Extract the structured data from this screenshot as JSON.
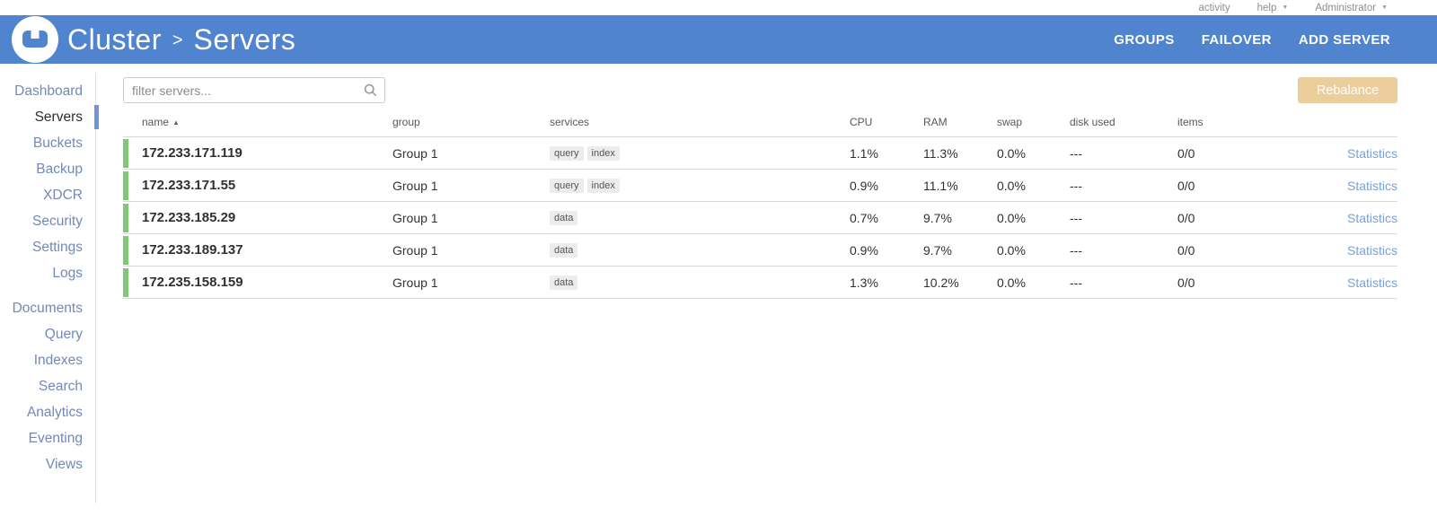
{
  "topbar": {
    "activity": "activity",
    "help": "help",
    "user": "Administrator"
  },
  "header": {
    "breadcrumb": {
      "root": "Cluster",
      "separator": ">",
      "current": "Servers"
    },
    "actions": [
      "GROUPS",
      "FAILOVER",
      "ADD SERVER"
    ]
  },
  "sidebar": {
    "groups": [
      {
        "items": [
          {
            "label": "Dashboard",
            "active": false
          },
          {
            "label": "Servers",
            "active": true
          },
          {
            "label": "Buckets",
            "active": false
          },
          {
            "label": "Backup",
            "active": false
          },
          {
            "label": "XDCR",
            "active": false
          },
          {
            "label": "Security",
            "active": false
          },
          {
            "label": "Settings",
            "active": false
          },
          {
            "label": "Logs",
            "active": false
          }
        ]
      },
      {
        "items": [
          {
            "label": "Documents",
            "active": false
          },
          {
            "label": "Query",
            "active": false
          },
          {
            "label": "Indexes",
            "active": false
          },
          {
            "label": "Search",
            "active": false
          },
          {
            "label": "Analytics",
            "active": false
          },
          {
            "label": "Eventing",
            "active": false
          },
          {
            "label": "Views",
            "active": false
          }
        ]
      }
    ]
  },
  "toolbar": {
    "filter_placeholder": "filter servers...",
    "rebalance_label": "Rebalance"
  },
  "table": {
    "columns": [
      "name",
      "group",
      "services",
      "CPU",
      "RAM",
      "swap",
      "disk used",
      "items"
    ],
    "sort_icon": "▲",
    "rows": [
      {
        "name": "172.233.171.119",
        "group": "Group 1",
        "services": [
          "query",
          "index"
        ],
        "cpu": "1.1%",
        "ram": "11.3%",
        "swap": "0.0%",
        "disk_used": "---",
        "items": "0/0",
        "link": "Statistics"
      },
      {
        "name": "172.233.171.55",
        "group": "Group 1",
        "services": [
          "query",
          "index"
        ],
        "cpu": "0.9%",
        "ram": "11.1%",
        "swap": "0.0%",
        "disk_used": "---",
        "items": "0/0",
        "link": "Statistics"
      },
      {
        "name": "172.233.185.29",
        "group": "Group 1",
        "services": [
          "data"
        ],
        "cpu": "0.7%",
        "ram": "9.7%",
        "swap": "0.0%",
        "disk_used": "---",
        "items": "0/0",
        "link": "Statistics"
      },
      {
        "name": "172.233.189.137",
        "group": "Group 1",
        "services": [
          "data"
        ],
        "cpu": "0.9%",
        "ram": "9.7%",
        "swap": "0.0%",
        "disk_used": "---",
        "items": "0/0",
        "link": "Statistics"
      },
      {
        "name": "172.235.158.159",
        "group": "Group 1",
        "services": [
          "data"
        ],
        "cpu": "1.3%",
        "ram": "10.2%",
        "swap": "0.0%",
        "disk_used": "---",
        "items": "0/0",
        "link": "Statistics"
      }
    ]
  },
  "colors": {
    "header_blue": "#5084CE",
    "active_indicator": "#6F97D5",
    "health_green": "#80C974",
    "rebalance_disabled": "#ECCE9D",
    "link_blue": "#75A2DA"
  }
}
